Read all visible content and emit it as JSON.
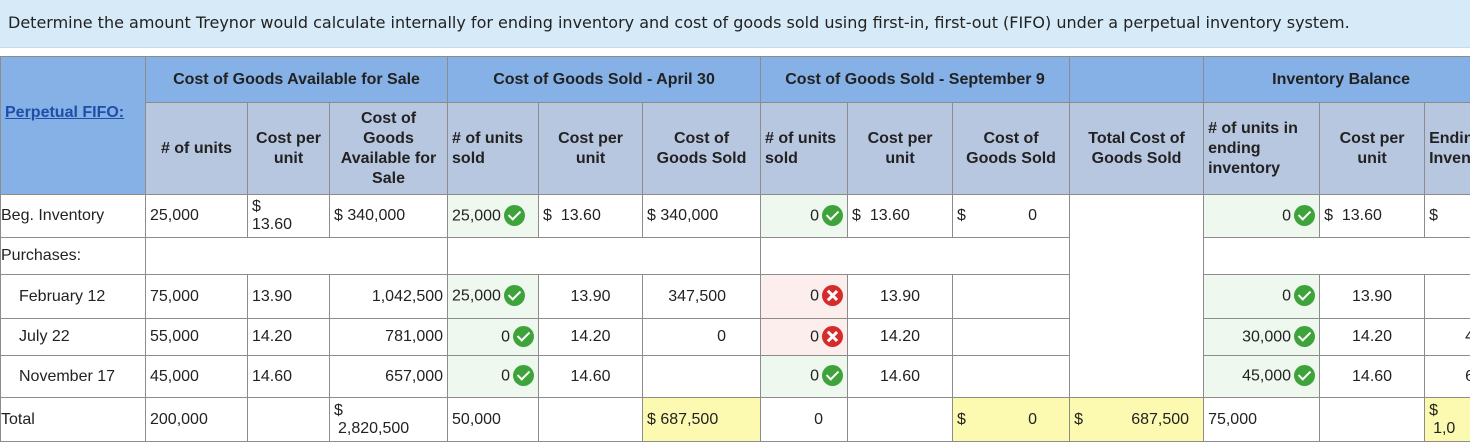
{
  "instruction": "Determine the amount Treynor would calculate internally for ending inventory and cost of goods sold using first-in, first-out (FIFO) under a perpetual inventory system.",
  "header": {
    "perpetual_label": "Perpetual FIFO:",
    "group_available": "Cost of Goods Available for Sale",
    "group_april": "Cost of Goods Sold - April 30",
    "group_september": "Cost of Goods Sold - September 9",
    "group_inventory": "Inventory Balance",
    "col_units": "# of units",
    "col_cost_per_unit_narrow": "Cost per unit",
    "col_cogas": "Cost of Goods Available for Sale",
    "col_units_sold": "# of units sold",
    "col_cost_per_unit": "Cost per unit",
    "col_cogs": "Cost of Goods Sold",
    "col_total_cogs": "Total Cost of Goods Sold",
    "col_units_ending": "# of units in ending inventory",
    "col_ending_inventory": "Ending Inventory"
  },
  "rows": {
    "beg": {
      "label": "Beg. Inventory",
      "units": "25,000",
      "cost_per_unit": "13.60",
      "cogas": "340,000",
      "apr_units": "25,000",
      "apr_cpu": "13.60",
      "apr_cogs": "340,000",
      "sep_units": "0",
      "sep_cpu": "13.60",
      "sep_cogs": "0",
      "inv_units": "0",
      "inv_cpu": "13.60",
      "inv_total": ""
    },
    "purchases_label": "Purchases:",
    "feb": {
      "label": "February 12",
      "units": "75,000",
      "cost_per_unit": "13.90",
      "cogas": "1,042,500",
      "apr_units": "25,000",
      "apr_cpu": "13.90",
      "apr_cogs": "347,500",
      "sep_units": "0",
      "sep_cpu": "13.90",
      "inv_units": "0",
      "inv_cpu": "13.90"
    },
    "jul": {
      "label": "July 22",
      "units": "55,000",
      "cost_per_unit": "14.20",
      "cogas": "781,000",
      "apr_units": "0",
      "apr_cpu": "14.20",
      "apr_cogs": "0",
      "sep_units": "0",
      "sep_cpu": "14.20",
      "inv_units": "30,000",
      "inv_cpu": "14.20",
      "inv_total": "4"
    },
    "nov": {
      "label": "November 17",
      "units": "45,000",
      "cost_per_unit": "14.60",
      "cogas": "657,000",
      "apr_units": "0",
      "apr_cpu": "14.60",
      "sep_units": "0",
      "sep_cpu": "14.60",
      "inv_units": "45,000",
      "inv_cpu": "14.60",
      "inv_total": "6"
    },
    "total": {
      "label": "Total",
      "units": "200,000",
      "cogas": "2,820,500",
      "apr_units": "50,000",
      "apr_cogs": "687,500",
      "sep_units": "0",
      "sep_cogs": "0",
      "total_cogs": "687,500",
      "inv_units": "75,000",
      "inv_total": "1,0"
    }
  },
  "currency_symbol": "$",
  "icons": {
    "correct": "check-circle-icon",
    "incorrect": "x-circle-icon"
  },
  "colors": {
    "banner": "#d6eaf8",
    "header_top": "#86b1e6",
    "header_sub": "#b8c7e0",
    "correct_bg": "#eef8ee",
    "incorrect_bg": "#fdeeee",
    "highlight": "#fcfab0",
    "correct_icon": "#3ea33a",
    "incorrect_icon": "#d62b2b"
  }
}
